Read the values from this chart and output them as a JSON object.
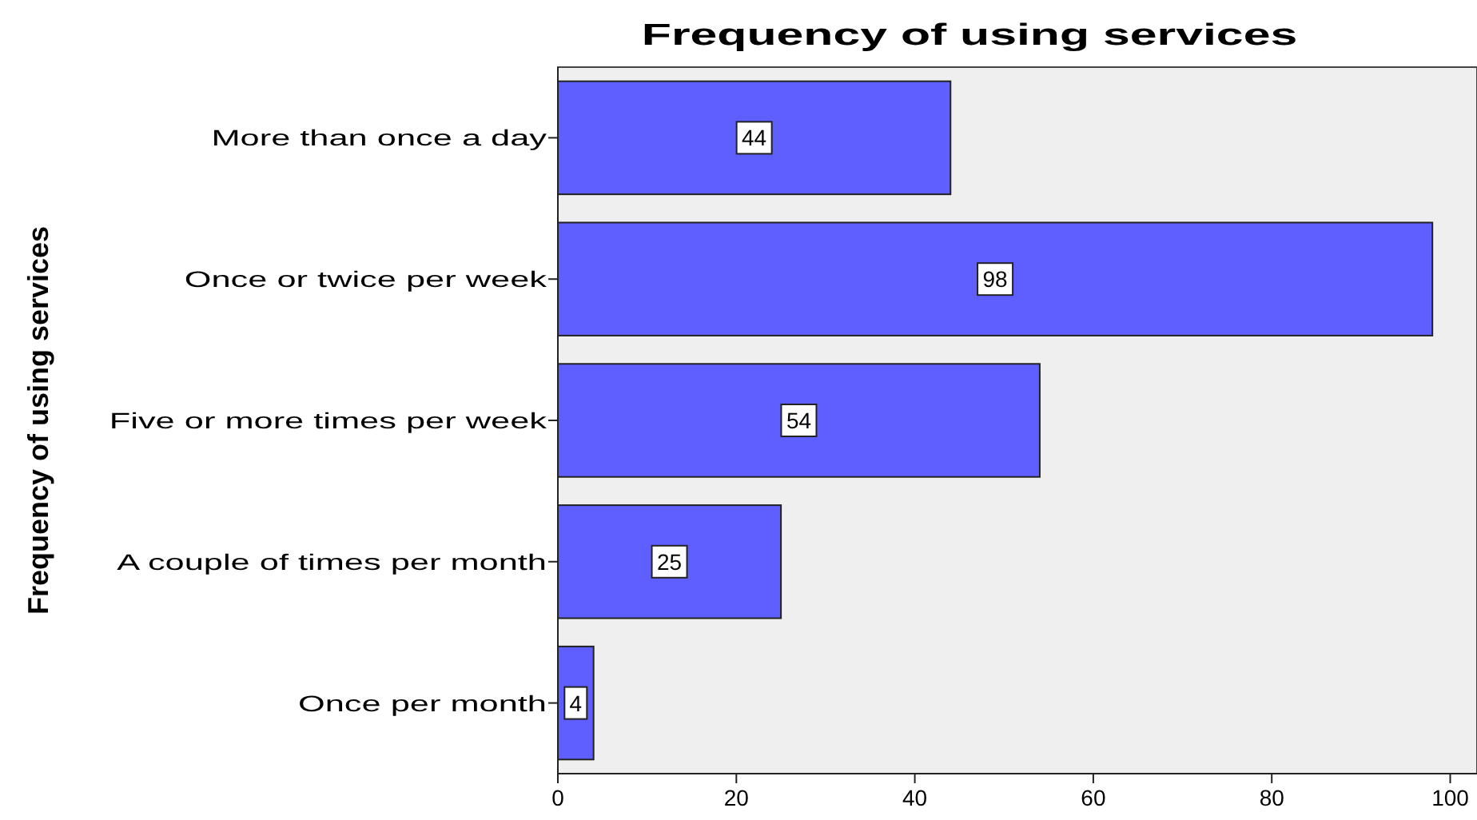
{
  "chart_data": {
    "type": "bar",
    "orientation": "horizontal",
    "title": "Frequency of using services",
    "ylabel": "Frequency of using services",
    "categories": [
      "More than once a day",
      "Once or twice per week",
      "Five or more times per week",
      "A couple of times per month",
      "Once per month"
    ],
    "values": [
      44,
      98,
      54,
      25,
      4
    ],
    "color": "#5f5fff",
    "data_labels": true,
    "xlim": [
      0,
      103
    ],
    "xticks": [
      0,
      20,
      40,
      60,
      80,
      100
    ],
    "grid": false
  }
}
